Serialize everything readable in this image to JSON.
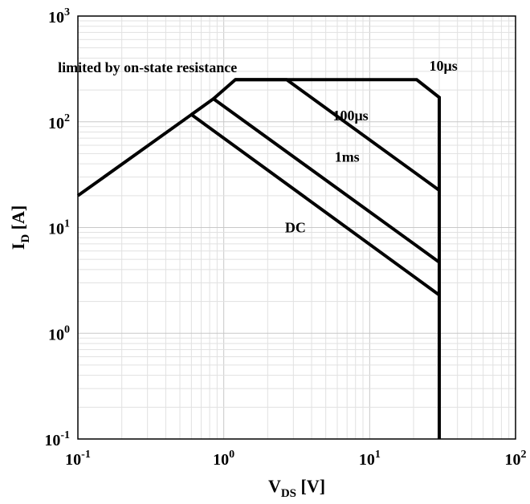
{
  "chart_data": {
    "type": "line",
    "x_scale": "log",
    "y_scale": "log",
    "xlim": [
      0.1,
      100
    ],
    "ylim": [
      0.1,
      1000
    ],
    "grid": true,
    "xlabel": {
      "main": "V",
      "sub": "DS",
      "unit": " [V]"
    },
    "ylabel": {
      "main": "I",
      "sub": "D",
      "unit": " [A]"
    },
    "x_ticks": [
      {
        "base": "10",
        "exp": "-1",
        "value": 0.1
      },
      {
        "base": "10",
        "exp": "0",
        "value": 1
      },
      {
        "base": "10",
        "exp": "1",
        "value": 10
      },
      {
        "base": "10",
        "exp": "2",
        "value": 100
      }
    ],
    "y_ticks": [
      {
        "base": "10",
        "exp": "-1",
        "value": 0.1
      },
      {
        "base": "10",
        "exp": "0",
        "value": 1
      },
      {
        "base": "10",
        "exp": "1",
        "value": 10
      },
      {
        "base": "10",
        "exp": "2",
        "value": 100
      },
      {
        "base": "10",
        "exp": "3",
        "value": 1000
      }
    ],
    "series": [
      {
        "id": "dc",
        "points": [
          [
            0.1,
            20
          ],
          [
            0.6,
            117
          ],
          [
            30,
            2.3
          ]
        ]
      },
      {
        "id": "1ms",
        "points": [
          [
            0.6,
            117
          ],
          [
            0.85,
            165
          ],
          [
            30,
            4.7
          ]
        ]
      },
      {
        "id": "100us",
        "points": [
          [
            0.85,
            165
          ],
          [
            1.2,
            250
          ],
          [
            2.7,
            250
          ],
          [
            30,
            22.5
          ]
        ]
      },
      {
        "id": "10us",
        "points": [
          [
            1.2,
            250
          ],
          [
            21,
            250
          ],
          [
            30,
            170
          ],
          [
            30,
            0.1
          ]
        ]
      }
    ],
    "annotations": [
      {
        "id": "on-state",
        "text": "limited by on-state resistance",
        "x": 0.3,
        "y": 293
      },
      {
        "id": "10us-label",
        "text": "10μs",
        "x": 32,
        "y": 305
      },
      {
        "id": "100us-label",
        "text": "100μs",
        "x": 7.4,
        "y": 103
      },
      {
        "id": "1ms-label",
        "text": "1ms",
        "x": 7.0,
        "y": 42
      },
      {
        "id": "dc-label",
        "text": "DC",
        "x": 3.1,
        "y": 9.0
      }
    ]
  }
}
